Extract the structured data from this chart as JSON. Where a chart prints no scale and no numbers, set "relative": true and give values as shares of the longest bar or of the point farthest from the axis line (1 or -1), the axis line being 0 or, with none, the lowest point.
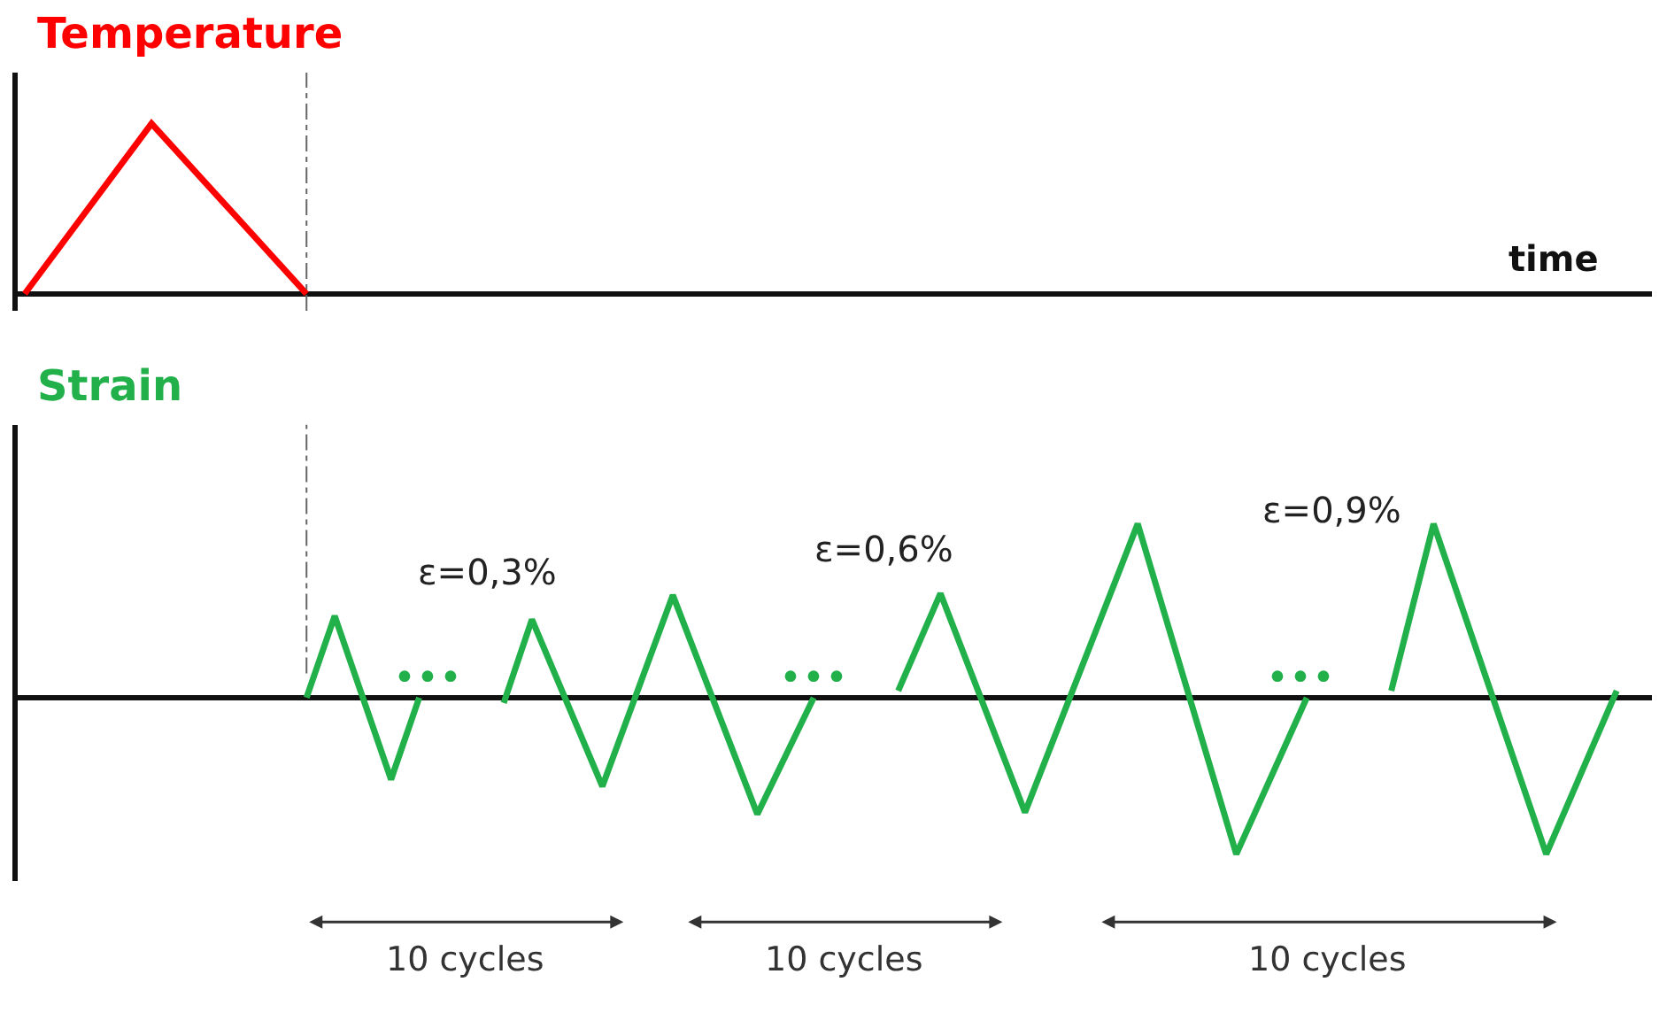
{
  "chart_data": [
    {
      "type": "line",
      "title": "Temperature",
      "xlabel": "time",
      "categories": [
        null,
        null,
        null,
        null,
        null,
        null,
        null,
        null,
        null,
        null,
        null,
        null,
        null,
        null,
        null,
        null,
        null,
        null,
        null,
        null,
        null,
        null,
        null,
        null,
        null,
        null,
        null,
        null,
        null,
        null,
        null,
        null,
        null,
        null,
        null,
        null,
        null,
        null,
        null,
        null,
        null,
        null,
        null,
        null,
        null,
        null,
        null,
        null,
        null,
        null,
        null,
        null,
        null,
        null,
        null,
        null,
        null,
        null,
        null,
        null,
        null,
        null,
        null,
        null,
        null,
        null,
        null,
        null,
        null,
        null,
        null,
        null,
        null,
        null,
        null,
        null,
        null,
        null,
        null,
        null,
        null,
        null,
        null,
        null,
        null,
        null,
        null,
        null,
        null,
        null,
        null,
        null,
        null,
        null,
        null,
        null,
        null,
        null,
        null,
        null,
        null,
        null,
        null,
        null,
        null,
        null,
        null,
        null,
        null,
        null,
        null,
        null,
        null,
        null,
        null,
        null
      ],
      "relative": true,
      "marker": "none",
      "line_style": "solid",
      "series": [
        {
          "color": "#ff0000",
          "values": [
            0,
            null,
            null,
            null,
            null,
            null,
            null,
            null,
            null,
            1,
            null,
            null,
            null,
            null,
            null,
            null,
            null,
            null,
            null,
            null,
            0,
            null,
            null,
            null,
            null,
            null,
            null,
            null,
            null,
            null,
            null,
            null,
            null,
            null,
            null,
            null,
            null,
            null,
            null,
            null,
            null,
            null,
            null,
            null,
            null,
            null,
            null,
            null,
            null,
            null,
            null,
            null,
            null,
            null,
            null,
            null,
            null,
            null,
            null,
            null,
            null,
            null,
            null,
            null,
            null,
            null,
            null,
            null,
            null,
            null,
            null,
            null,
            null,
            null,
            null,
            null,
            null,
            null,
            null,
            null,
            null,
            null,
            null,
            null,
            null,
            null,
            null,
            null,
            null,
            null,
            null,
            null,
            null,
            null,
            null,
            null,
            null,
            null,
            null,
            null,
            null,
            null,
            null,
            null,
            null,
            null,
            null,
            null,
            null,
            null,
            null,
            null,
            null,
            null,
            null,
            null
          ]
        }
      ]
    },
    {
      "type": "line",
      "title": "Strain",
      "categories": [
        null,
        null,
        null,
        null,
        null,
        null,
        null,
        null,
        null,
        null,
        null,
        null,
        null,
        null,
        null,
        null,
        null,
        null,
        null,
        null,
        null,
        null,
        null,
        null,
        null,
        null,
        null,
        null,
        null,
        null,
        null,
        null,
        null,
        null,
        null,
        null,
        null,
        null,
        null,
        null,
        null,
        null,
        null,
        null,
        null,
        null,
        null,
        null,
        null,
        null,
        null,
        null,
        null,
        null,
        null,
        null,
        null,
        null,
        null,
        null,
        null,
        null,
        null,
        null,
        null,
        null,
        null,
        null,
        null,
        null,
        null,
        null,
        null,
        null,
        null,
        null,
        null,
        null,
        null,
        null,
        null,
        null,
        null,
        null,
        null,
        null,
        null,
        null,
        null,
        null,
        null,
        null,
        null,
        null,
        null,
        null,
        null,
        null,
        null,
        null,
        null,
        null,
        null,
        null,
        null,
        null,
        null,
        null,
        null,
        null,
        null,
        null,
        null,
        null,
        null,
        null
      ],
      "relative": true,
      "marker": "none",
      "line_style": "solid",
      "series": [
        {
          "color": "#22b04a",
          "values": [
            null,
            null,
            null,
            null,
            null,
            null,
            null,
            null,
            null,
            null,
            null,
            null,
            null,
            null,
            null,
            null,
            null,
            null,
            null,
            null,
            0,
            null,
            0.47,
            null,
            null,
            null,
            -0.47,
            null,
            0,
            null,
            null,
            null,
            null,
            null,
            null,
            null,
            null,
            null,
            null,
            null,
            null,
            null,
            null,
            null,
            null,
            null,
            null,
            null,
            null,
            null,
            null,
            null,
            null,
            null,
            null,
            null,
            null,
            null,
            null,
            null,
            null,
            null,
            null,
            null,
            null,
            null,
            null,
            null,
            null,
            null,
            null,
            null,
            null,
            null,
            null,
            null,
            null,
            null,
            null,
            null,
            null,
            null,
            null,
            null,
            null,
            null,
            null,
            null,
            null,
            null,
            null,
            null,
            null,
            null,
            null,
            null,
            null,
            null,
            null,
            null,
            null,
            null,
            null,
            null,
            null,
            null,
            null,
            null,
            null,
            null,
            null,
            null,
            null,
            null,
            null,
            null
          ]
        },
        {
          "color": "#22b04a",
          "values": [
            null,
            null,
            null,
            null,
            null,
            null,
            null,
            null,
            null,
            null,
            null,
            null,
            null,
            null,
            null,
            null,
            null,
            null,
            null,
            null,
            null,
            null,
            null,
            null,
            null,
            null,
            null,
            null,
            null,
            null,
            null,
            null,
            null,
            null,
            -0.03,
            null,
            0.45,
            null,
            null,
            null,
            null,
            -0.51,
            null,
            null,
            null,
            null,
            0.59,
            null,
            null,
            null,
            null,
            null,
            -0.67,
            null,
            null,
            null,
            0,
            null,
            null,
            null,
            null,
            null,
            null,
            null,
            null,
            null,
            null,
            null,
            null,
            null,
            null,
            null,
            null,
            null,
            null,
            null,
            null,
            null,
            null,
            null,
            null,
            null,
            null,
            null,
            null,
            null,
            null,
            null,
            null,
            null,
            null,
            null,
            null,
            null,
            null,
            null,
            null,
            null,
            null,
            null,
            null,
            null,
            null,
            null,
            null,
            null,
            null,
            null,
            null,
            null,
            null,
            null,
            null,
            null,
            null,
            null
          ]
        },
        {
          "color": "#22b04a",
          "values": [
            null,
            null,
            null,
            null,
            null,
            null,
            null,
            null,
            null,
            null,
            null,
            null,
            null,
            null,
            null,
            null,
            null,
            null,
            null,
            null,
            null,
            null,
            null,
            null,
            null,
            null,
            null,
            null,
            null,
            null,
            null,
            null,
            null,
            null,
            null,
            null,
            null,
            null,
            null,
            null,
            null,
            null,
            null,
            null,
            null,
            null,
            null,
            null,
            null,
            null,
            null,
            null,
            null,
            null,
            null,
            null,
            null,
            null,
            null,
            null,
            null,
            null,
            0.04,
            null,
            null,
            0.6,
            null,
            null,
            null,
            null,
            null,
            -0.66,
            null,
            null,
            null,
            null,
            null,
            null,
            null,
            1,
            null,
            null,
            null,
            null,
            null,
            null,
            -0.9,
            null,
            null,
            null,
            null,
            0,
            null,
            null,
            null,
            null,
            null,
            null,
            null,
            null,
            null,
            null,
            null,
            null,
            null,
            null,
            null,
            null,
            null,
            null,
            null,
            null,
            null,
            null,
            null,
            null
          ]
        },
        {
          "color": "#22b04a",
          "values": [
            null,
            null,
            null,
            null,
            null,
            null,
            null,
            null,
            null,
            null,
            null,
            null,
            null,
            null,
            null,
            null,
            null,
            null,
            null,
            null,
            null,
            null,
            null,
            null,
            null,
            null,
            null,
            null,
            null,
            null,
            null,
            null,
            null,
            null,
            null,
            null,
            null,
            null,
            null,
            null,
            null,
            null,
            null,
            null,
            null,
            null,
            null,
            null,
            null,
            null,
            null,
            null,
            null,
            null,
            null,
            null,
            null,
            null,
            null,
            null,
            null,
            null,
            null,
            null,
            null,
            null,
            null,
            null,
            null,
            null,
            null,
            null,
            null,
            null,
            null,
            null,
            null,
            null,
            null,
            null,
            null,
            null,
            null,
            null,
            null,
            null,
            null,
            null,
            null,
            null,
            null,
            null,
            null,
            null,
            null,
            null,
            null,
            0.04,
            null,
            null,
            1,
            null,
            null,
            null,
            null,
            null,
            null,
            null,
            -0.9,
            null,
            null,
            null,
            null,
            0.04,
            null,
            null
          ]
        }
      ],
      "annotations": [
        "ε=0,3%",
        "ε=0,6%",
        "ε=0,9%",
        "•••",
        "•••",
        "•••",
        "10 cycles",
        "10 cycles",
        "10 cycles"
      ]
    }
  ]
}
